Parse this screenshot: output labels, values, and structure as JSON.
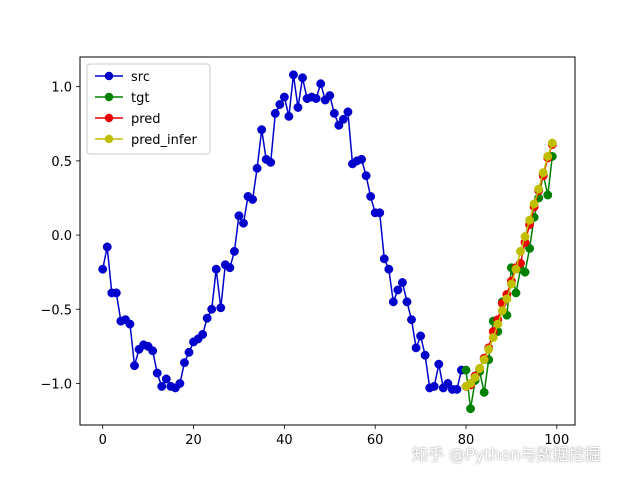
{
  "chart_data": {
    "type": "line",
    "title": "",
    "xlabel": "",
    "ylabel": "",
    "xlim": [
      -5,
      104
    ],
    "ylim": [
      -1.28,
      1.2
    ],
    "xticks": [
      0,
      20,
      40,
      60,
      80,
      100
    ],
    "xtick_labels": [
      "0",
      "20",
      "40",
      "60",
      "80",
      "100"
    ],
    "yticks": [
      -1.0,
      -0.5,
      0.0,
      0.5,
      1.0
    ],
    "ytick_labels": [
      "−1.0",
      "−0.5",
      "0.0",
      "0.5",
      "1.0"
    ],
    "grid": false,
    "legend_position": "top-left",
    "series": [
      {
        "name": "src",
        "color": "#0000cc",
        "marker": "circle",
        "x": [
          0,
          1,
          2,
          3,
          4,
          5,
          6,
          7,
          8,
          9,
          10,
          11,
          12,
          13,
          14,
          15,
          16,
          17,
          18,
          19,
          20,
          21,
          22,
          23,
          24,
          25,
          26,
          27,
          28,
          29,
          30,
          31,
          32,
          33,
          34,
          35,
          36,
          37,
          38,
          39,
          40,
          41,
          42,
          43,
          44,
          45,
          46,
          47,
          48,
          49,
          50,
          51,
          52,
          53,
          54,
          55,
          56,
          57,
          58,
          59,
          60,
          61,
          62,
          63,
          64,
          65,
          66,
          67,
          68,
          69,
          70,
          71,
          72,
          73,
          74,
          75,
          76,
          77,
          78,
          79
        ],
        "y": [
          -0.23,
          -0.08,
          -0.39,
          -0.39,
          -0.58,
          -0.57,
          -0.6,
          -0.88,
          -0.77,
          -0.74,
          -0.75,
          -0.78,
          -0.93,
          -1.02,
          -0.97,
          -1.02,
          -1.03,
          -1.0,
          -0.86,
          -0.79,
          -0.72,
          -0.7,
          -0.67,
          -0.56,
          -0.5,
          -0.23,
          -0.49,
          -0.2,
          -0.22,
          -0.11,
          0.13,
          0.08,
          0.26,
          0.24,
          0.45,
          0.71,
          0.51,
          0.49,
          0.82,
          0.88,
          0.93,
          0.8,
          1.08,
          0.86,
          1.06,
          0.92,
          0.93,
          0.92,
          1.02,
          0.91,
          0.94,
          0.82,
          0.74,
          0.78,
          0.83,
          0.48,
          0.5,
          0.51,
          0.4,
          0.26,
          0.15,
          0.15,
          -0.16,
          -0.23,
          -0.45,
          -0.37,
          -0.32,
          -0.45,
          -0.57,
          -0.76,
          -0.68,
          -0.81,
          -1.03,
          -1.02,
          -0.87,
          -1.03,
          -1.0,
          -1.04,
          -1.04,
          -0.91
        ]
      },
      {
        "name": "tgt",
        "color": "#008000",
        "marker": "circle",
        "x": [
          80,
          81,
          82,
          83,
          84,
          85,
          86,
          87,
          88,
          89,
          90,
          91,
          92,
          93,
          94,
          95,
          96,
          97,
          98,
          99
        ],
        "y": [
          -0.91,
          -1.17,
          -0.98,
          -0.92,
          -1.06,
          -0.84,
          -0.58,
          -0.65,
          -0.45,
          -0.54,
          -0.22,
          -0.39,
          -0.23,
          -0.25,
          -0.09,
          0.12,
          0.25,
          0.41,
          0.27,
          0.53
        ]
      },
      {
        "name": "pred",
        "color": "#ee0000",
        "marker": "circle",
        "x": [
          80,
          81,
          82,
          83,
          84,
          85,
          86,
          87,
          88,
          89,
          90,
          91,
          92,
          93,
          94,
          95,
          96,
          97,
          98,
          99
        ],
        "y": [
          -1.02,
          -1.01,
          -0.95,
          -0.9,
          -0.83,
          -0.76,
          -0.65,
          -0.57,
          -0.46,
          -0.4,
          -0.31,
          -0.22,
          -0.19,
          -0.05,
          0.07,
          0.19,
          0.3,
          0.4,
          0.52,
          0.61
        ]
      },
      {
        "name": "pred_infer",
        "color": "#bfbf00",
        "marker": "circle",
        "x": [
          80,
          81,
          82,
          83,
          84,
          85,
          86,
          87,
          88,
          89,
          90,
          91,
          92,
          93,
          94,
          95,
          96,
          97,
          98,
          99
        ],
        "y": [
          -1.02,
          -1.0,
          -0.96,
          -0.9,
          -0.84,
          -0.77,
          -0.69,
          -0.6,
          -0.51,
          -0.43,
          -0.33,
          -0.23,
          -0.11,
          -0.01,
          0.1,
          0.21,
          0.31,
          0.42,
          0.53,
          0.62
        ]
      }
    ]
  },
  "watermark": "知乎 @Python与数据挖掘"
}
